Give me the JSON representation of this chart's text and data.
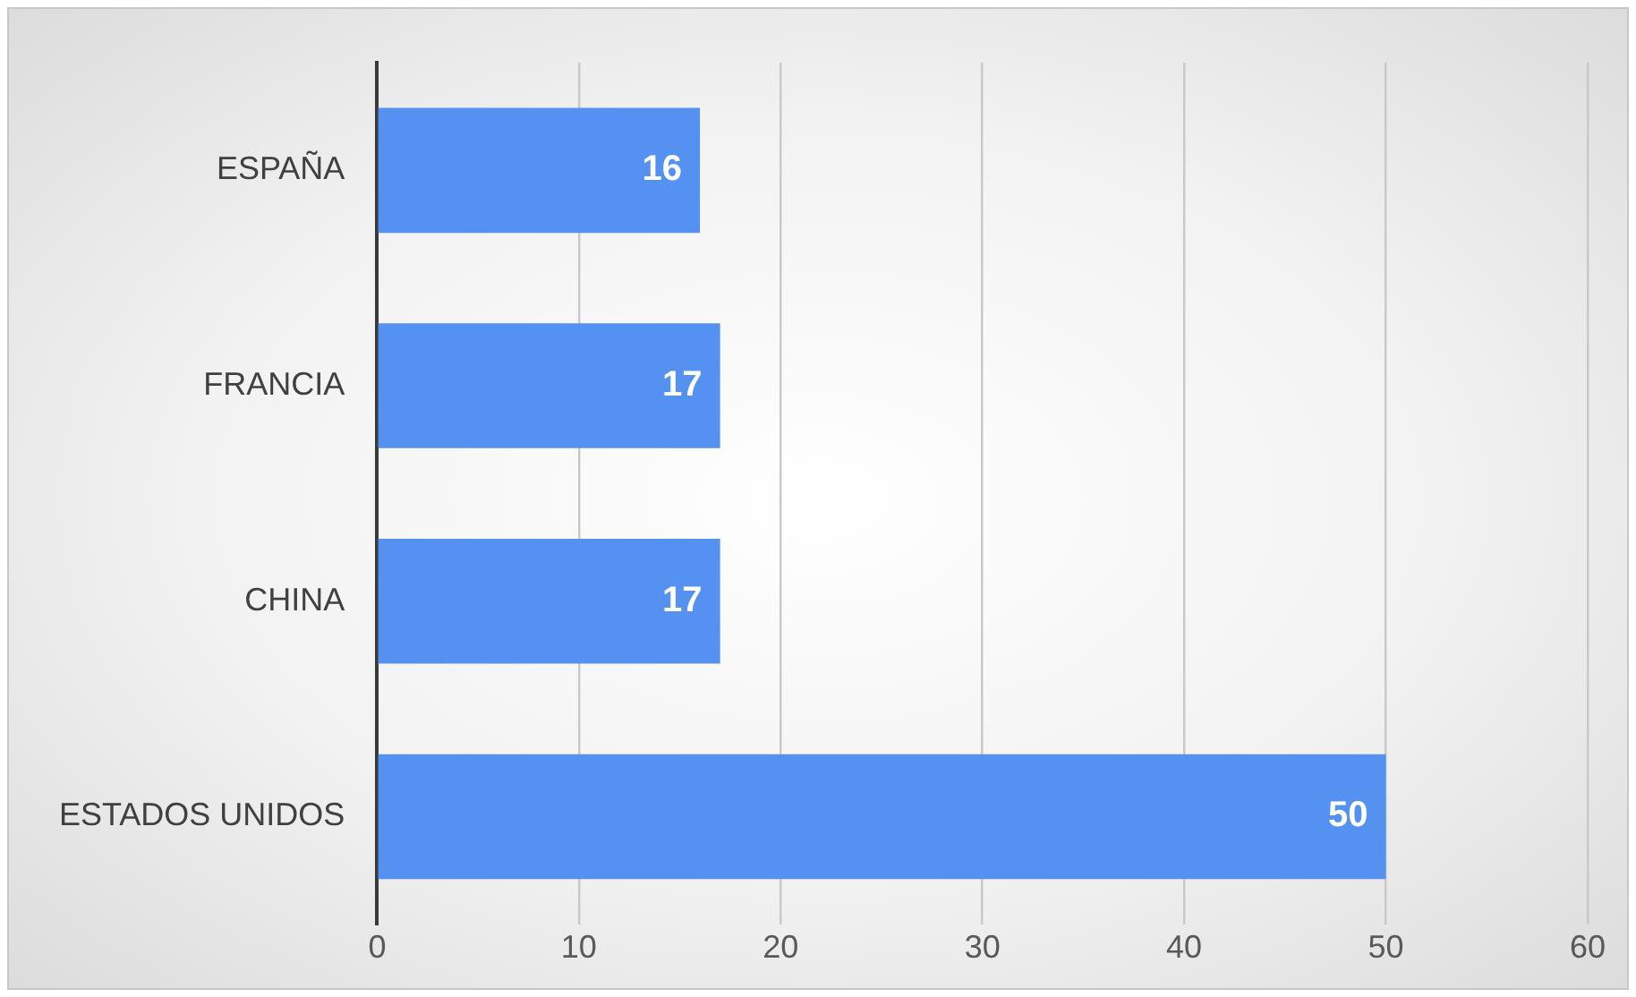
{
  "chart_data": {
    "type": "bar",
    "orientation": "horizontal",
    "categories": [
      "ESPAÑA",
      "FRANCIA",
      "CHINA",
      "ESTADOS UNIDOS"
    ],
    "values": [
      16,
      17,
      17,
      50
    ],
    "color": "#5591f0",
    "xlim": [
      0,
      60
    ],
    "xticks": [
      0,
      10,
      20,
      30,
      40,
      50,
      60
    ],
    "grid": "x",
    "data_labels": true,
    "legend": false
  }
}
